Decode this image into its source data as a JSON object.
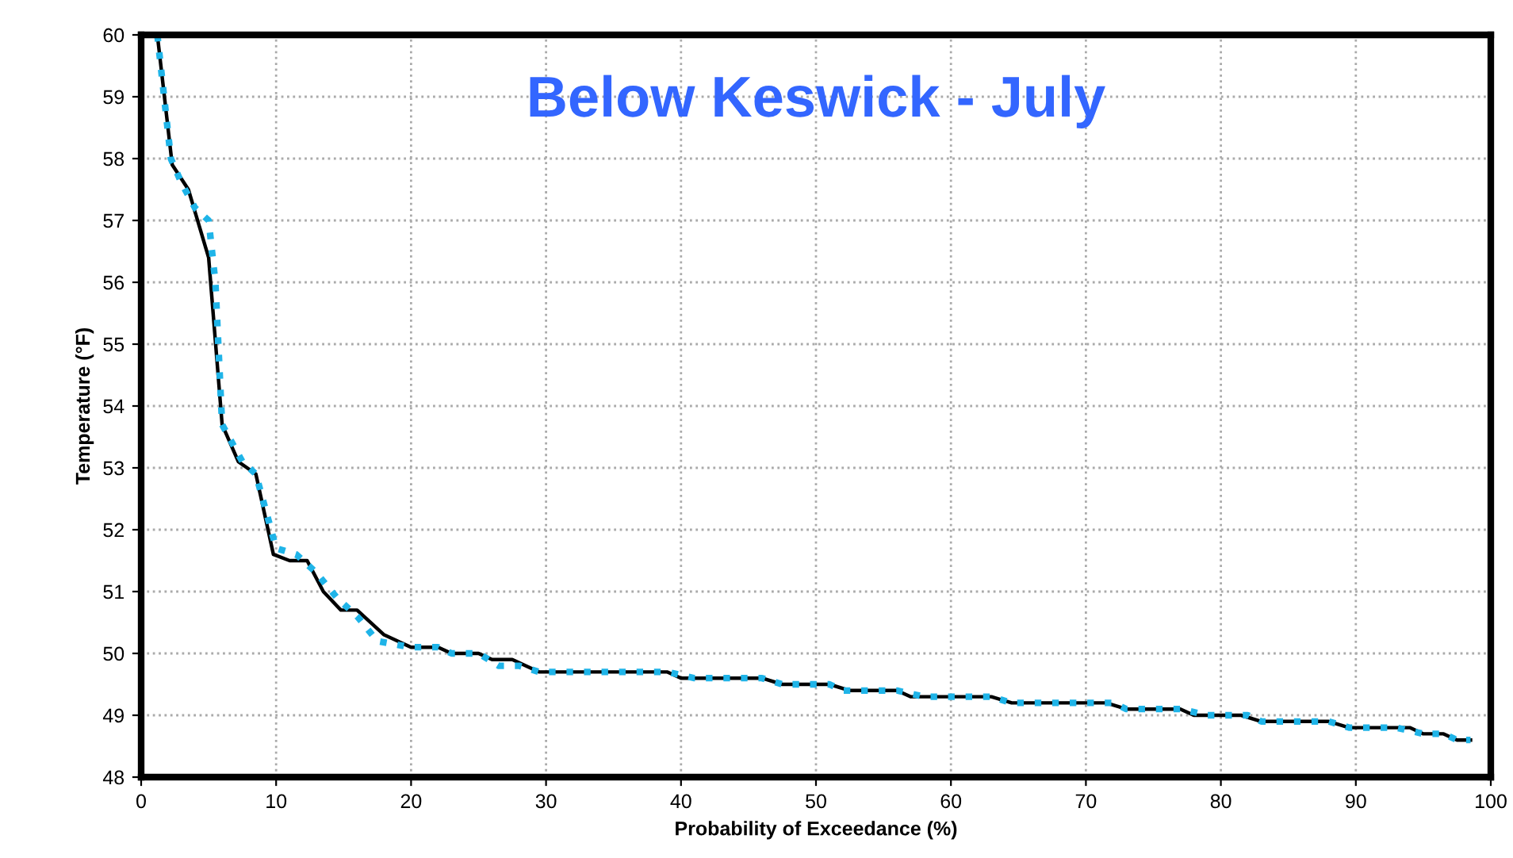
{
  "chart_data": {
    "type": "line",
    "title": "Below Keswick - July",
    "xlabel": "Probability of Exceedance (%)",
    "ylabel": "Temperature (°F)",
    "xlim": [
      0,
      100
    ],
    "xticks": [
      0,
      10,
      20,
      30,
      40,
      50,
      60,
      70,
      80,
      90,
      100
    ],
    "ylim": [
      48,
      60
    ],
    "yticks": [
      48,
      49,
      50,
      51,
      52,
      53,
      54,
      55,
      56,
      57,
      58,
      59,
      60
    ],
    "grid": true,
    "legend": false,
    "series": [
      {
        "color": "#000000",
        "line_style": "solid",
        "x": [
          1.2,
          2.3,
          3.5,
          5,
          6,
          7.2,
          8.5,
          9.8,
          11,
          12.3,
          13.5,
          14.8,
          16,
          18,
          20,
          22,
          23,
          25,
          26,
          27.5,
          29.5,
          39,
          40,
          46,
          47.5,
          51,
          52.5,
          56,
          57,
          63,
          64.5,
          71.5,
          73,
          77,
          78,
          81.5,
          83,
          88,
          89.5,
          94,
          95,
          96.5,
          97.5,
          98.5
        ],
        "values": [
          60,
          57.9,
          57.5,
          56.4,
          53.7,
          53.1,
          52.9,
          51.6,
          51.5,
          51.5,
          51,
          50.7,
          50.7,
          50.3,
          50.1,
          50.1,
          50,
          50,
          49.9,
          49.9,
          49.7,
          49.7,
          49.6,
          49.6,
          49.5,
          49.5,
          49.4,
          49.4,
          49.3,
          49.3,
          49.2,
          49.2,
          49.1,
          49.1,
          49,
          49,
          48.9,
          48.9,
          48.8,
          48.8,
          48.7,
          48.7,
          48.6,
          48.6
        ]
      },
      {
        "color": "#1fb4e8",
        "line_style": "dotted",
        "x": [
          1.2,
          2.2,
          3,
          4,
          5,
          5.5,
          6,
          7.5,
          8.5,
          10,
          11.5,
          13,
          14.5,
          16,
          17.5,
          20,
          22,
          23,
          25,
          26.5,
          28,
          29.5,
          39,
          41,
          46,
          47.5,
          51,
          52,
          56,
          58,
          63,
          64.5,
          72,
          73,
          77,
          79,
          82,
          83,
          88,
          89.5,
          93,
          95,
          96.5,
          97.5,
          98.5
        ],
        "values": [
          60,
          58,
          57.6,
          57.2,
          57,
          56,
          53.7,
          53.1,
          52.9,
          51.7,
          51.6,
          51.3,
          50.9,
          50.6,
          50.2,
          50.1,
          50.1,
          50,
          50,
          49.8,
          49.8,
          49.7,
          49.7,
          49.6,
          49.6,
          49.5,
          49.5,
          49.4,
          49.4,
          49.3,
          49.3,
          49.2,
          49.2,
          49.1,
          49.1,
          49,
          49,
          48.9,
          48.9,
          48.8,
          48.8,
          48.7,
          48.7,
          48.6,
          48.6
        ]
      }
    ]
  }
}
